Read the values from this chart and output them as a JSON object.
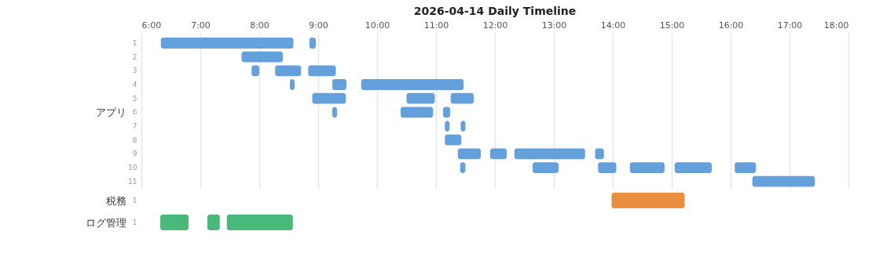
{
  "chart_data": [
    {
      "type": "bar",
      "orientation": "horizontal",
      "title": "2026-04-14 Daily Timeline",
      "ylabel": "アプリ",
      "categories": [
        "1",
        "2",
        "3",
        "4",
        "5",
        "6",
        "7",
        "8",
        "9",
        "10",
        "11"
      ],
      "xlim": [
        6,
        18
      ],
      "xticks": [
        {
          "value": 6,
          "label": "6:00"
        },
        {
          "value": 7,
          "label": "7:00"
        },
        {
          "value": 8,
          "label": "8:00"
        },
        {
          "value": 9,
          "label": "9:00"
        },
        {
          "value": 10,
          "label": "10:00"
        },
        {
          "value": 11,
          "label": "11:00"
        },
        {
          "value": 12,
          "label": "12:00"
        },
        {
          "value": 13,
          "label": "13:00"
        },
        {
          "value": 14,
          "label": "14:00"
        },
        {
          "value": 15,
          "label": "15:00"
        },
        {
          "value": 16,
          "label": "16:00"
        },
        {
          "value": 17,
          "label": "17:00"
        },
        {
          "value": 18,
          "label": "18:00"
        }
      ],
      "grid": "x",
      "series": [
        {
          "color": "#64a0dc",
          "base": [
            6.33,
            7.7,
            7.87,
            8.52,
            8.9,
            9.24,
            11.15,
            11.15,
            11.37,
            11.41,
            16.37
          ],
          "values": [
            2.25,
            0.7,
            0.13,
            0.08,
            0.57,
            0.08,
            0.08,
            0.28,
            0.39,
            0.09,
            1.06
          ]
        },
        {
          "color": "#64a0dc",
          "base": [
            8.85,
            null,
            8.27,
            9.24,
            10.5,
            10.4,
            11.42,
            null,
            11.92,
            12.64,
            null
          ],
          "values": [
            0.11,
            null,
            0.44,
            0.24,
            0.48,
            0.55,
            0.08,
            null,
            0.28,
            0.44,
            null
          ]
        },
        {
          "color": "#64a0dc",
          "base": [
            null,
            null,
            8.83,
            9.73,
            11.25,
            11.12,
            null,
            null,
            12.33,
            13.75,
            null
          ],
          "values": [
            null,
            null,
            0.47,
            1.74,
            0.39,
            0.12,
            null,
            null,
            1.2,
            0.31,
            null
          ]
        },
        {
          "color": "#64a0dc",
          "base": [
            null,
            null,
            null,
            null,
            null,
            null,
            null,
            null,
            13.7,
            14.29,
            null
          ],
          "values": [
            null,
            null,
            null,
            null,
            null,
            null,
            null,
            null,
            0.15,
            0.59,
            null
          ]
        },
        {
          "color": "#64a0dc",
          "base": [
            null,
            null,
            null,
            null,
            null,
            null,
            null,
            null,
            null,
            15.05,
            null
          ],
          "values": [
            null,
            null,
            null,
            null,
            null,
            null,
            null,
            null,
            null,
            0.63,
            null
          ]
        },
        {
          "color": "#64a0dc",
          "base": [
            null,
            null,
            null,
            null,
            null,
            null,
            null,
            null,
            null,
            16.07,
            null
          ],
          "values": [
            null,
            null,
            null,
            null,
            null,
            null,
            null,
            null,
            null,
            0.36,
            null
          ]
        }
      ]
    },
    {
      "type": "bar",
      "orientation": "horizontal",
      "ylabel": "税務",
      "categories": [
        "1"
      ],
      "xlim": [
        6,
        18
      ],
      "tick_labels": "y",
      "grid": "x",
      "series": [
        {
          "color": "#e8903f",
          "base": [
            13.98
          ],
          "values": [
            1.24
          ]
        }
      ]
    },
    {
      "type": "bar",
      "orientation": "horizontal",
      "ylabel": "ログ管理",
      "categories": [
        "1"
      ],
      "xlim": [
        6,
        18
      ],
      "tick_labels": "y",
      "grid": "x",
      "series": [
        {
          "color": "#48b978",
          "base": [
            6.32
          ],
          "values": [
            0.48
          ]
        },
        {
          "color": "#48b978",
          "base": [
            7.12
          ],
          "values": [
            0.21
          ]
        },
        {
          "color": "#48b978",
          "base": [
            7.45
          ],
          "values": [
            1.12
          ]
        }
      ]
    }
  ]
}
